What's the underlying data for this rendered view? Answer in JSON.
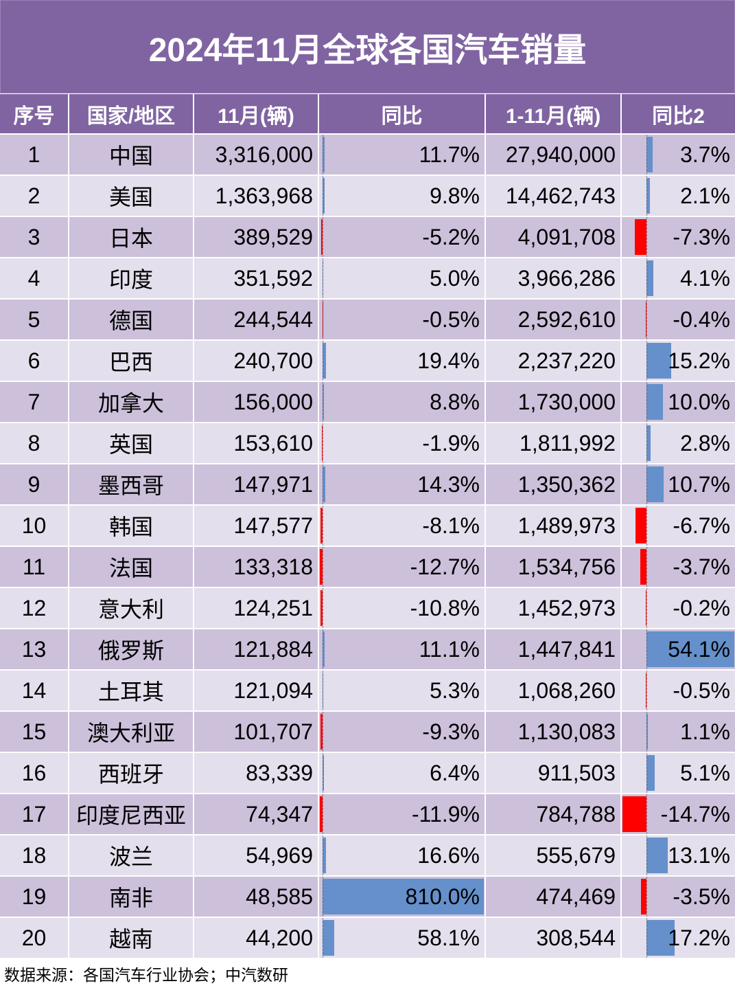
{
  "colors": {
    "header_bg": "#8064A2",
    "row_odd": "#CCC0DA",
    "row_even": "#E4DFEC",
    "bar_positive": "#6590CB",
    "bar_negative": "#FF0000"
  },
  "chart_data": {
    "type": "table",
    "title": "2024年11月全球各国汽车销量",
    "columns": [
      "序号",
      "国家/地区",
      "11月(辆)",
      "同比",
      "1-11月(辆)",
      "同比2"
    ],
    "rows": [
      {
        "rank": "1",
        "country": "中国",
        "nov": "3,316,000",
        "yoy": "11.7%",
        "ytd": "27,940,000",
        "yoy2": "3.7%"
      },
      {
        "rank": "2",
        "country": "美国",
        "nov": "1,363,968",
        "yoy": "9.8%",
        "ytd": "14,462,743",
        "yoy2": "2.1%"
      },
      {
        "rank": "3",
        "country": "日本",
        "nov": "389,529",
        "yoy": "-5.2%",
        "ytd": "4,091,708",
        "yoy2": "-7.3%"
      },
      {
        "rank": "4",
        "country": "印度",
        "nov": "351,592",
        "yoy": "5.0%",
        "ytd": "3,966,286",
        "yoy2": "4.1%"
      },
      {
        "rank": "5",
        "country": "德国",
        "nov": "244,544",
        "yoy": "-0.5%",
        "ytd": "2,592,610",
        "yoy2": "-0.4%"
      },
      {
        "rank": "6",
        "country": "巴西",
        "nov": "240,700",
        "yoy": "19.4%",
        "ytd": "2,237,220",
        "yoy2": "15.2%"
      },
      {
        "rank": "7",
        "country": "加拿大",
        "nov": "156,000",
        "yoy": "8.8%",
        "ytd": "1,730,000",
        "yoy2": "10.0%"
      },
      {
        "rank": "8",
        "country": "英国",
        "nov": "153,610",
        "yoy": "-1.9%",
        "ytd": "1,811,992",
        "yoy2": "2.8%"
      },
      {
        "rank": "9",
        "country": "墨西哥",
        "nov": "147,971",
        "yoy": "14.3%",
        "ytd": "1,350,362",
        "yoy2": "10.7%"
      },
      {
        "rank": "10",
        "country": "韩国",
        "nov": "147,577",
        "yoy": "-8.1%",
        "ytd": "1,489,973",
        "yoy2": "-6.7%"
      },
      {
        "rank": "11",
        "country": "法国",
        "nov": "133,318",
        "yoy": "-12.7%",
        "ytd": "1,534,756",
        "yoy2": "-3.7%"
      },
      {
        "rank": "12",
        "country": "意大利",
        "nov": "124,251",
        "yoy": "-10.8%",
        "ytd": "1,452,973",
        "yoy2": "-0.2%"
      },
      {
        "rank": "13",
        "country": "俄罗斯",
        "nov": "121,884",
        "yoy": "11.1%",
        "ytd": "1,447,841",
        "yoy2": "54.1%"
      },
      {
        "rank": "14",
        "country": "土耳其",
        "nov": "121,094",
        "yoy": "5.3%",
        "ytd": "1,068,260",
        "yoy2": "-0.5%"
      },
      {
        "rank": "15",
        "country": "澳大利亚",
        "nov": "101,707",
        "yoy": "-9.3%",
        "ytd": "1,130,083",
        "yoy2": "1.1%"
      },
      {
        "rank": "16",
        "country": "西班牙",
        "nov": "83,339",
        "yoy": "6.4%",
        "ytd": "911,503",
        "yoy2": "5.1%"
      },
      {
        "rank": "17",
        "country": "印度尼西亚",
        "nov": "74,347",
        "yoy": "-11.9%",
        "ytd": "784,788",
        "yoy2": "-14.7%"
      },
      {
        "rank": "18",
        "country": "波兰",
        "nov": "54,969",
        "yoy": "16.6%",
        "ytd": "555,679",
        "yoy2": "13.1%"
      },
      {
        "rank": "19",
        "country": "南非",
        "nov": "48,585",
        "yoy": "810.0%",
        "ytd": "474,469",
        "yoy2": "-3.5%"
      },
      {
        "rank": "20",
        "country": "越南",
        "nov": "44,200",
        "yoy": "58.1%",
        "ytd": "308,544",
        "yoy2": "17.2%"
      }
    ]
  },
  "footer": {
    "source": "数据来源：各国汽车行业协会；中汽数研"
  }
}
